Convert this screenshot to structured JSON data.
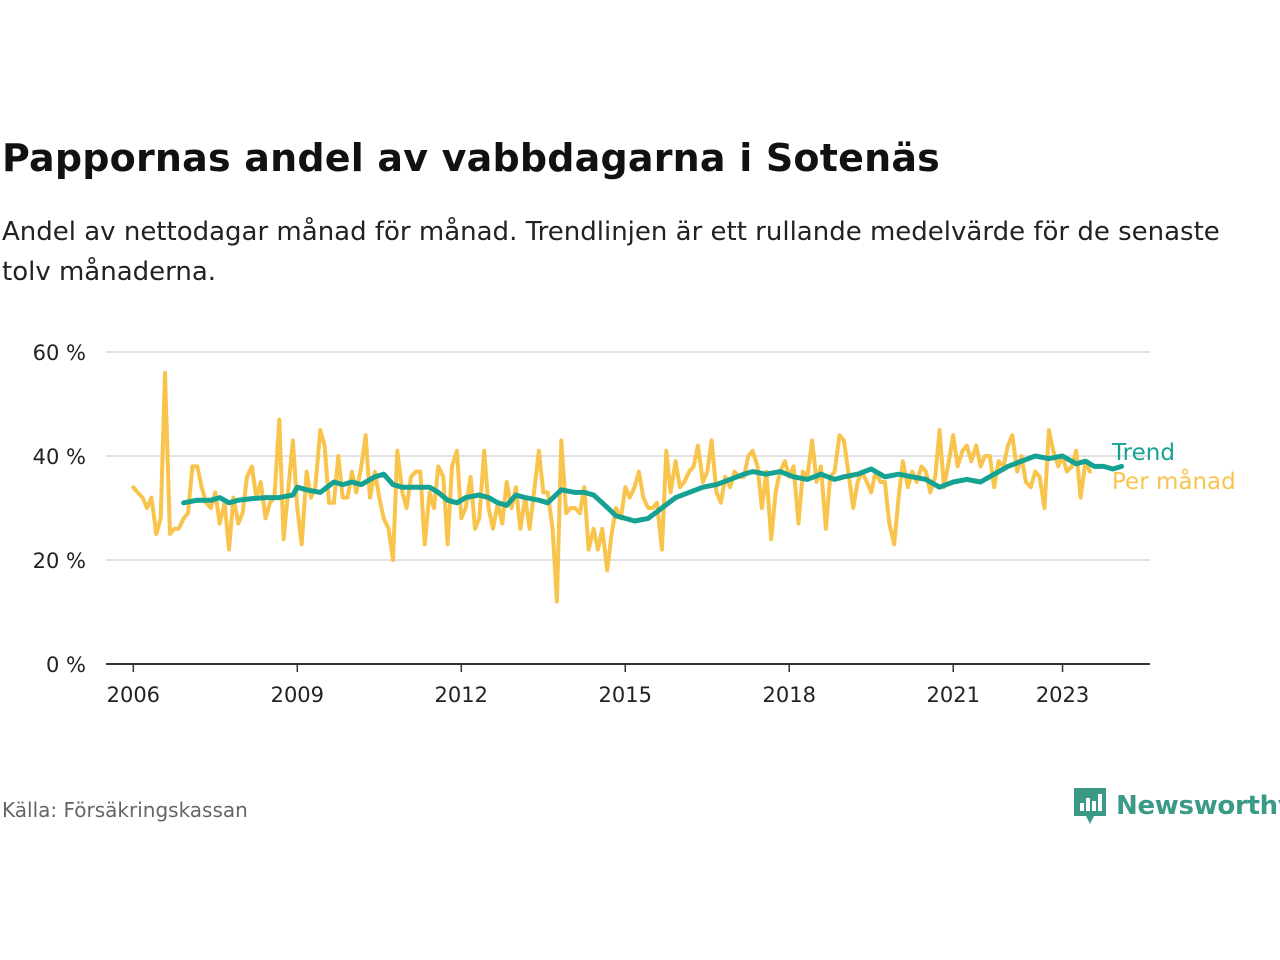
{
  "title": "Pappornas andel av vabbdagarna i Sotenäs",
  "subtitle": "Andel av nettodagar månad för månad. Trendlinjen är ett rullande medelvärde för de senaste tolv månaderna.",
  "source": "Källa: Försäkringskassan",
  "brand": {
    "name": "Newsworthy",
    "icon": "newsworthy-logo-icon",
    "color": "#3b9a87"
  },
  "chart_data": {
    "type": "line",
    "title": "Pappornas andel av vabbdagarna i Sotenäs",
    "ylim": [
      0,
      60
    ],
    "yticks": [
      0,
      20,
      40,
      60
    ],
    "ytick_labels": [
      "0 %",
      "20 %",
      "40 %",
      "60 %"
    ],
    "xlim": [
      2005.5,
      2024.6
    ],
    "xticks": [
      2006,
      2009,
      2012,
      2015,
      2018,
      2021,
      2023
    ],
    "xtick_labels": [
      "2006",
      "2009",
      "2012",
      "2015",
      "2018",
      "2021",
      "2023"
    ],
    "grid": true,
    "legend": "right, labels at line ends",
    "series": [
      {
        "name": "Per månad",
        "color": "#f8c44c",
        "points": [
          [
            2006.0,
            34
          ],
          [
            2006.08,
            33
          ],
          [
            2006.17,
            32
          ],
          [
            2006.25,
            30
          ],
          [
            2006.33,
            32
          ],
          [
            2006.42,
            25
          ],
          [
            2006.5,
            28
          ],
          [
            2006.58,
            56
          ],
          [
            2006.67,
            25
          ],
          [
            2006.75,
            26
          ],
          [
            2006.83,
            26
          ],
          [
            2006.92,
            28
          ],
          [
            2007.0,
            29
          ],
          [
            2007.08,
            38
          ],
          [
            2007.17,
            38
          ],
          [
            2007.25,
            34
          ],
          [
            2007.33,
            31
          ],
          [
            2007.42,
            30
          ],
          [
            2007.5,
            33
          ],
          [
            2007.58,
            27
          ],
          [
            2007.67,
            31
          ],
          [
            2007.75,
            22
          ],
          [
            2007.83,
            32
          ],
          [
            2007.92,
            27
          ],
          [
            2008.0,
            29
          ],
          [
            2008.08,
            36
          ],
          [
            2008.17,
            38
          ],
          [
            2008.25,
            32
          ],
          [
            2008.33,
            35
          ],
          [
            2008.42,
            28
          ],
          [
            2008.5,
            31
          ],
          [
            2008.58,
            32
          ],
          [
            2008.67,
            47
          ],
          [
            2008.75,
            24
          ],
          [
            2008.83,
            33
          ],
          [
            2008.92,
            43
          ],
          [
            2009.0,
            30
          ],
          [
            2009.08,
            23
          ],
          [
            2009.17,
            37
          ],
          [
            2009.25,
            32
          ],
          [
            2009.33,
            34
          ],
          [
            2009.42,
            45
          ],
          [
            2009.5,
            42
          ],
          [
            2009.58,
            31
          ],
          [
            2009.67,
            31
          ],
          [
            2009.75,
            40
          ],
          [
            2009.83,
            32
          ],
          [
            2009.92,
            32
          ],
          [
            2010.0,
            37
          ],
          [
            2010.08,
            33
          ],
          [
            2010.17,
            38
          ],
          [
            2010.25,
            44
          ],
          [
            2010.33,
            32
          ],
          [
            2010.42,
            37
          ],
          [
            2010.5,
            32
          ],
          [
            2010.58,
            28
          ],
          [
            2010.67,
            26
          ],
          [
            2010.75,
            20
          ],
          [
            2010.83,
            41
          ],
          [
            2010.92,
            33
          ],
          [
            2011.0,
            30
          ],
          [
            2011.08,
            36
          ],
          [
            2011.17,
            37
          ],
          [
            2011.25,
            37
          ],
          [
            2011.33,
            23
          ],
          [
            2011.42,
            33
          ],
          [
            2011.5,
            30
          ],
          [
            2011.58,
            38
          ],
          [
            2011.67,
            36
          ],
          [
            2011.75,
            23
          ],
          [
            2011.83,
            38
          ],
          [
            2011.92,
            41
          ],
          [
            2012.0,
            28
          ],
          [
            2012.08,
            30
          ],
          [
            2012.17,
            36
          ],
          [
            2012.25,
            26
          ],
          [
            2012.33,
            28
          ],
          [
            2012.42,
            41
          ],
          [
            2012.5,
            30
          ],
          [
            2012.58,
            26
          ],
          [
            2012.67,
            31
          ],
          [
            2012.75,
            27
          ],
          [
            2012.83,
            35
          ],
          [
            2012.92,
            30
          ],
          [
            2013.0,
            34
          ],
          [
            2013.08,
            26
          ],
          [
            2013.17,
            32
          ],
          [
            2013.25,
            26
          ],
          [
            2013.33,
            33
          ],
          [
            2013.42,
            41
          ],
          [
            2013.5,
            33
          ],
          [
            2013.58,
            33
          ],
          [
            2013.67,
            26
          ],
          [
            2013.75,
            12
          ],
          [
            2013.83,
            43
          ],
          [
            2013.92,
            29
          ],
          [
            2014.0,
            30
          ],
          [
            2014.08,
            30
          ],
          [
            2014.17,
            29
          ],
          [
            2014.25,
            34
          ],
          [
            2014.33,
            22
          ],
          [
            2014.42,
            26
          ],
          [
            2014.5,
            22
          ],
          [
            2014.58,
            26
          ],
          [
            2014.67,
            18
          ],
          [
            2014.75,
            25
          ],
          [
            2014.83,
            30
          ],
          [
            2014.92,
            28
          ],
          [
            2015.0,
            34
          ],
          [
            2015.08,
            32
          ],
          [
            2015.17,
            34
          ],
          [
            2015.25,
            37
          ],
          [
            2015.33,
            32
          ],
          [
            2015.42,
            30
          ],
          [
            2015.5,
            30
          ],
          [
            2015.58,
            31
          ],
          [
            2015.67,
            22
          ],
          [
            2015.75,
            41
          ],
          [
            2015.83,
            33
          ],
          [
            2015.92,
            39
          ],
          [
            2016.0,
            34
          ],
          [
            2016.08,
            35
          ],
          [
            2016.17,
            37
          ],
          [
            2016.25,
            38
          ],
          [
            2016.33,
            42
          ],
          [
            2016.42,
            35
          ],
          [
            2016.5,
            37
          ],
          [
            2016.58,
            43
          ],
          [
            2016.67,
            33
          ],
          [
            2016.75,
            31
          ],
          [
            2016.83,
            36
          ],
          [
            2016.92,
            34
          ],
          [
            2017.0,
            37
          ],
          [
            2017.08,
            36
          ],
          [
            2017.17,
            36
          ],
          [
            2017.25,
            40
          ],
          [
            2017.33,
            41
          ],
          [
            2017.42,
            38
          ],
          [
            2017.5,
            30
          ],
          [
            2017.58,
            37
          ],
          [
            2017.67,
            24
          ],
          [
            2017.75,
            33
          ],
          [
            2017.83,
            37
          ],
          [
            2017.92,
            39
          ],
          [
            2018.0,
            36
          ],
          [
            2018.08,
            38
          ],
          [
            2018.17,
            27
          ],
          [
            2018.25,
            37
          ],
          [
            2018.33,
            36
          ],
          [
            2018.42,
            43
          ],
          [
            2018.5,
            35
          ],
          [
            2018.58,
            38
          ],
          [
            2018.67,
            26
          ],
          [
            2018.75,
            36
          ],
          [
            2018.83,
            37
          ],
          [
            2018.92,
            44
          ],
          [
            2019.0,
            43
          ],
          [
            2019.08,
            37
          ],
          [
            2019.17,
            30
          ],
          [
            2019.25,
            35
          ],
          [
            2019.33,
            37
          ],
          [
            2019.42,
            35
          ],
          [
            2019.5,
            33
          ],
          [
            2019.58,
            37
          ],
          [
            2019.67,
            35
          ],
          [
            2019.75,
            35
          ],
          [
            2019.83,
            27
          ],
          [
            2019.92,
            23
          ],
          [
            2020.0,
            32
          ],
          [
            2020.08,
            39
          ],
          [
            2020.17,
            34
          ],
          [
            2020.25,
            37
          ],
          [
            2020.33,
            35
          ],
          [
            2020.42,
            38
          ],
          [
            2020.5,
            37
          ],
          [
            2020.58,
            33
          ],
          [
            2020.67,
            36
          ],
          [
            2020.75,
            45
          ],
          [
            2020.83,
            34
          ],
          [
            2020.92,
            39
          ],
          [
            2021.0,
            44
          ],
          [
            2021.08,
            38
          ],
          [
            2021.17,
            41
          ],
          [
            2021.25,
            42
          ],
          [
            2021.33,
            39
          ],
          [
            2021.42,
            42
          ],
          [
            2021.5,
            38
          ],
          [
            2021.58,
            40
          ],
          [
            2021.67,
            40
          ],
          [
            2021.75,
            34
          ],
          [
            2021.83,
            39
          ],
          [
            2021.92,
            38
          ],
          [
            2022.0,
            42
          ],
          [
            2022.08,
            44
          ],
          [
            2022.17,
            37
          ],
          [
            2022.25,
            40
          ],
          [
            2022.33,
            35
          ],
          [
            2022.42,
            34
          ],
          [
            2022.5,
            37
          ],
          [
            2022.58,
            36
          ],
          [
            2022.67,
            30
          ],
          [
            2022.75,
            45
          ],
          [
            2022.83,
            41
          ],
          [
            2022.92,
            38
          ],
          [
            2023.0,
            40
          ],
          [
            2023.08,
            37
          ],
          [
            2023.17,
            38
          ],
          [
            2023.25,
            41
          ],
          [
            2023.33,
            32
          ],
          [
            2023.42,
            39
          ],
          [
            2023.5,
            37
          ]
        ]
      },
      {
        "name": "Trend",
        "color": "#16a292",
        "points": [
          [
            2006.92,
            31
          ],
          [
            2007.17,
            31.5
          ],
          [
            2007.42,
            31.5
          ],
          [
            2007.58,
            32
          ],
          [
            2007.75,
            31
          ],
          [
            2007.92,
            31.5
          ],
          [
            2008.17,
            31.8
          ],
          [
            2008.42,
            32
          ],
          [
            2008.67,
            32
          ],
          [
            2008.92,
            32.5
          ],
          [
            2009.0,
            34
          ],
          [
            2009.17,
            33.5
          ],
          [
            2009.42,
            33
          ],
          [
            2009.67,
            35
          ],
          [
            2009.83,
            34.5
          ],
          [
            2010.0,
            35
          ],
          [
            2010.17,
            34.5
          ],
          [
            2010.42,
            36
          ],
          [
            2010.58,
            36.5
          ],
          [
            2010.75,
            34.5
          ],
          [
            2010.92,
            34
          ],
          [
            2011.17,
            34
          ],
          [
            2011.42,
            34
          ],
          [
            2011.58,
            33
          ],
          [
            2011.75,
            31.5
          ],
          [
            2011.92,
            31
          ],
          [
            2012.08,
            32
          ],
          [
            2012.33,
            32.5
          ],
          [
            2012.5,
            32
          ],
          [
            2012.67,
            31
          ],
          [
            2012.83,
            30.5
          ],
          [
            2013.0,
            32.5
          ],
          [
            2013.17,
            32
          ],
          [
            2013.42,
            31.5
          ],
          [
            2013.58,
            31
          ],
          [
            2013.83,
            33.5
          ],
          [
            2014.08,
            33
          ],
          [
            2014.25,
            33
          ],
          [
            2014.42,
            32.5
          ],
          [
            2014.58,
            31
          ],
          [
            2014.83,
            28.5
          ],
          [
            2015.0,
            28
          ],
          [
            2015.17,
            27.5
          ],
          [
            2015.42,
            28
          ],
          [
            2015.67,
            30
          ],
          [
            2015.92,
            32
          ],
          [
            2016.17,
            33
          ],
          [
            2016.42,
            34
          ],
          [
            2016.67,
            34.5
          ],
          [
            2016.92,
            35.5
          ],
          [
            2017.17,
            36.5
          ],
          [
            2017.33,
            37
          ],
          [
            2017.58,
            36.5
          ],
          [
            2017.83,
            37
          ],
          [
            2018.08,
            36
          ],
          [
            2018.33,
            35.5
          ],
          [
            2018.58,
            36.5
          ],
          [
            2018.83,
            35.5
          ],
          [
            2019.0,
            36
          ],
          [
            2019.25,
            36.5
          ],
          [
            2019.5,
            37.5
          ],
          [
            2019.75,
            36
          ],
          [
            2020.0,
            36.5
          ],
          [
            2020.25,
            36
          ],
          [
            2020.5,
            35.5
          ],
          [
            2020.75,
            34
          ],
          [
            2021.0,
            35
          ],
          [
            2021.25,
            35.5
          ],
          [
            2021.5,
            35
          ],
          [
            2021.75,
            36.5
          ],
          [
            2022.0,
            38
          ],
          [
            2022.25,
            39
          ],
          [
            2022.5,
            40
          ],
          [
            2022.75,
            39.5
          ],
          [
            2023.0,
            40
          ],
          [
            2023.25,
            38.5
          ],
          [
            2023.42,
            39
          ],
          [
            2023.58,
            38
          ],
          [
            2023.75,
            38
          ],
          [
            2023.92,
            37.5
          ],
          [
            2024.08,
            38
          ]
        ]
      }
    ]
  }
}
